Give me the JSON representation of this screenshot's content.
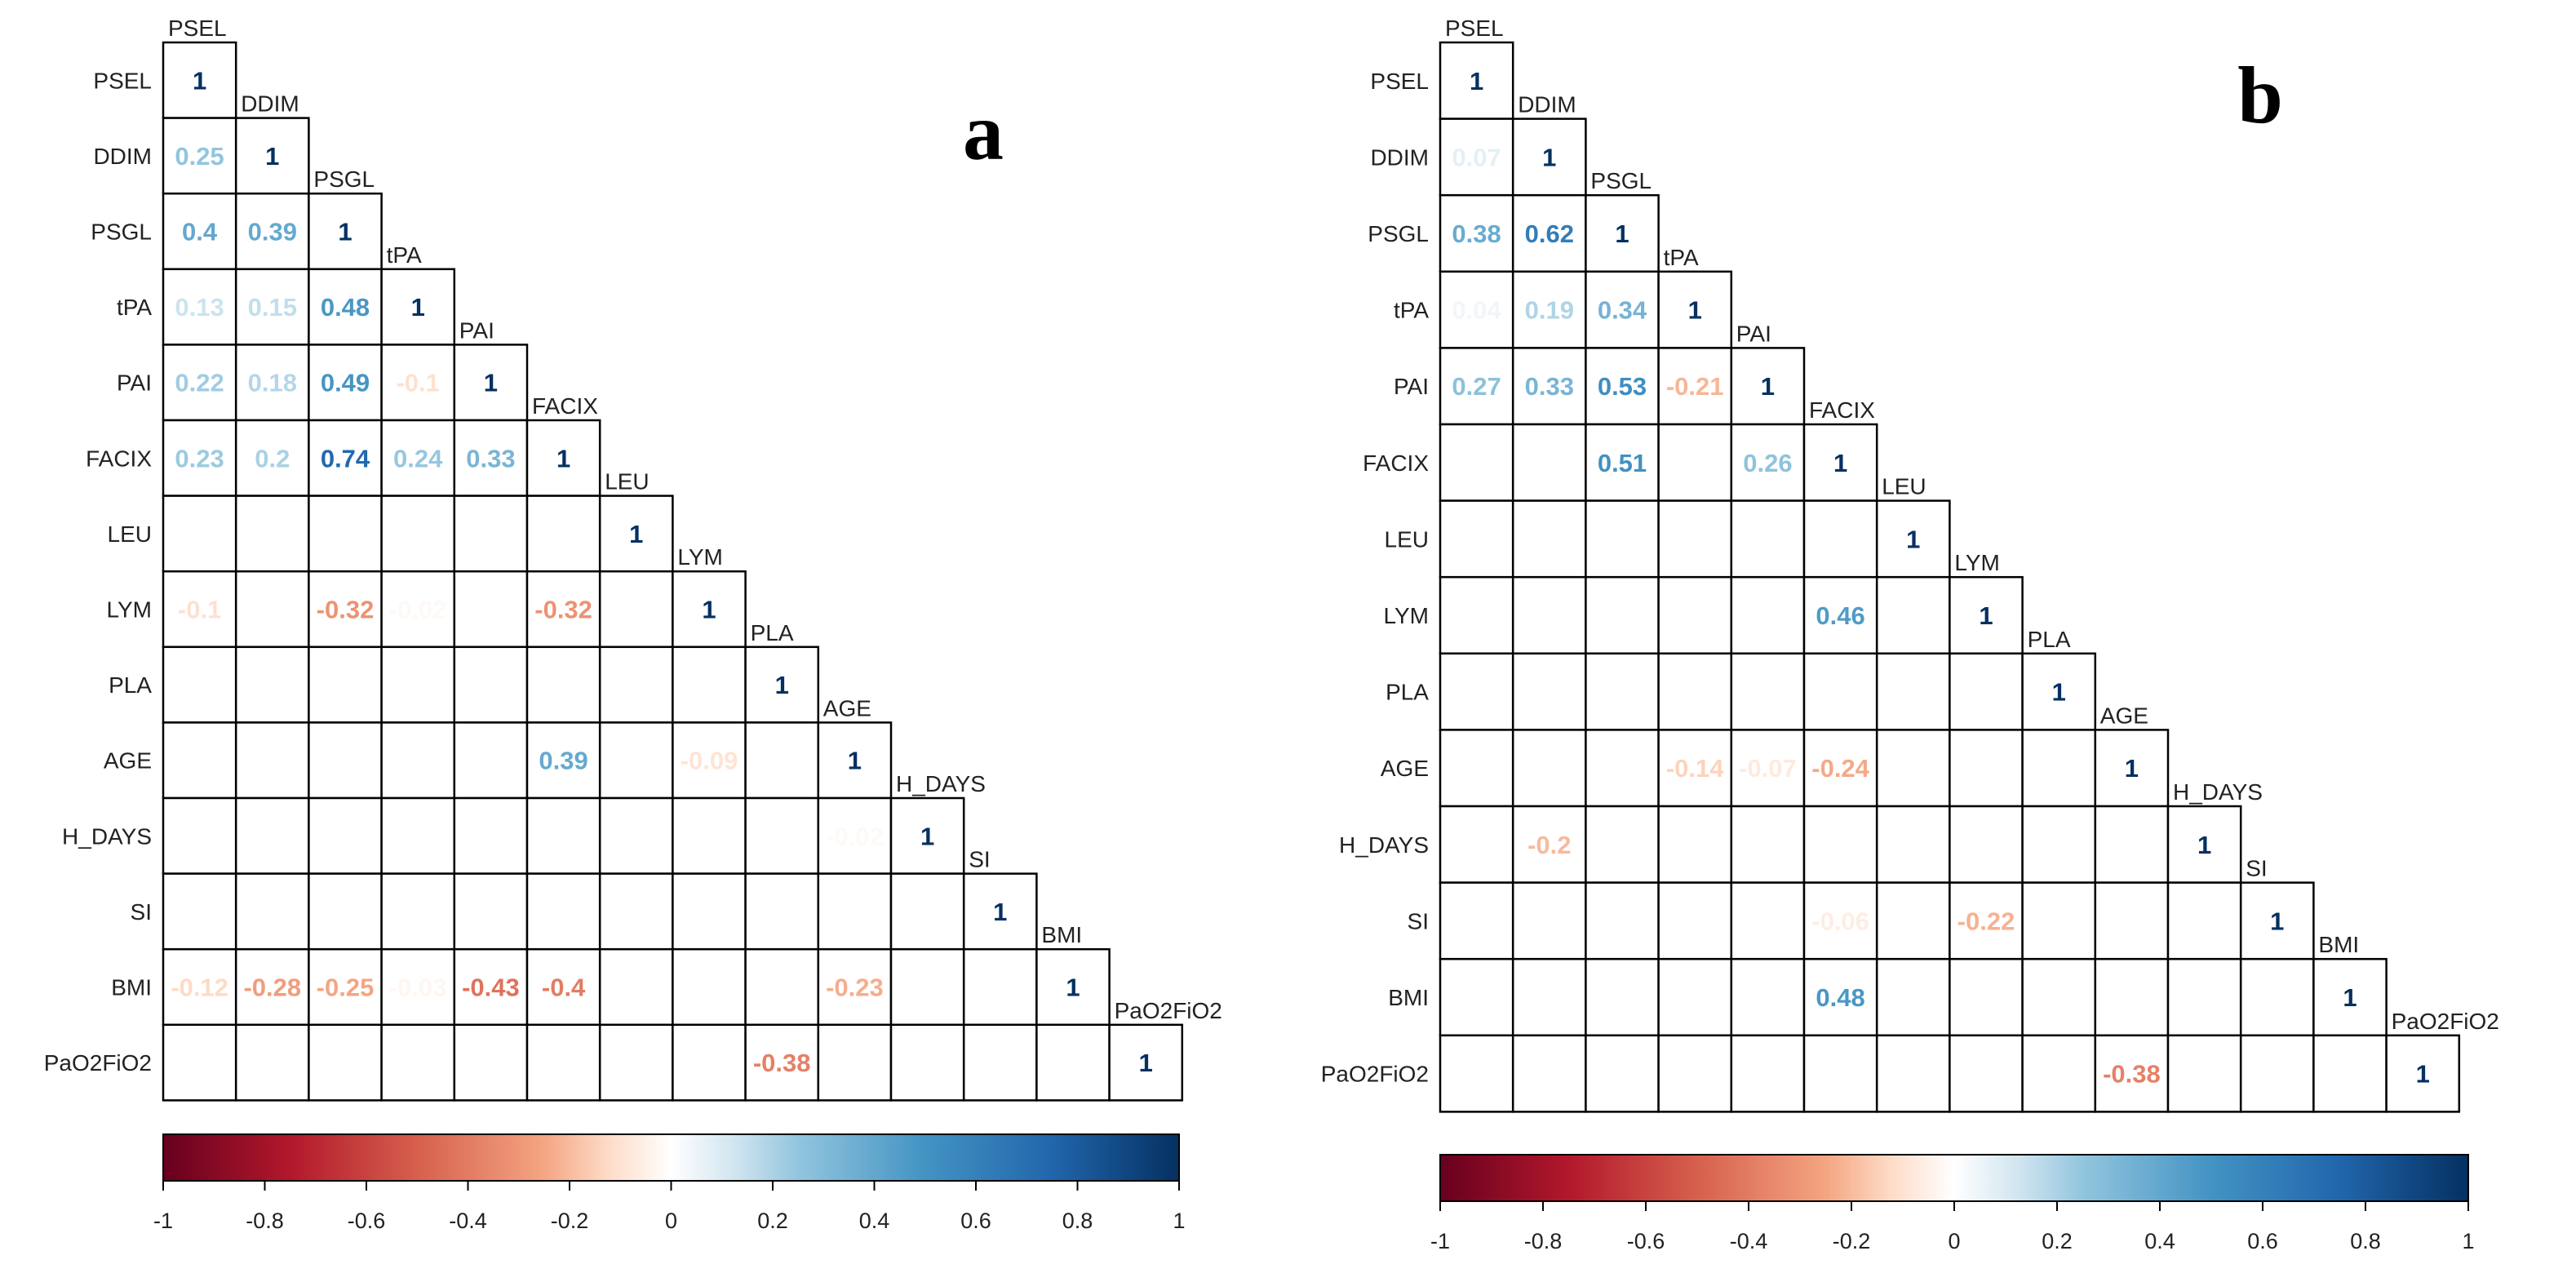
{
  "chart_data": [
    {
      "type": "heatmap",
      "panel_label": "a",
      "variables": [
        "PSEL",
        "DDIM",
        "PSGL",
        "tPA",
        "PAI",
        "FACIX",
        "LEU",
        "LYM",
        "PLA",
        "AGE",
        "H_DAYS",
        "SI",
        "BMI",
        "PaO2FiO2"
      ],
      "cells": [
        {
          "row": "PSEL",
          "col": "PSEL",
          "value": "1"
        },
        {
          "row": "DDIM",
          "col": "PSEL",
          "value": "0.25"
        },
        {
          "row": "DDIM",
          "col": "DDIM",
          "value": "1"
        },
        {
          "row": "PSGL",
          "col": "PSEL",
          "value": "0.4"
        },
        {
          "row": "PSGL",
          "col": "DDIM",
          "value": "0.39"
        },
        {
          "row": "PSGL",
          "col": "PSGL",
          "value": "1"
        },
        {
          "row": "tPA",
          "col": "PSEL",
          "value": "0.13"
        },
        {
          "row": "tPA",
          "col": "DDIM",
          "value": "0.15"
        },
        {
          "row": "tPA",
          "col": "PSGL",
          "value": "0.48"
        },
        {
          "row": "tPA",
          "col": "tPA",
          "value": "1"
        },
        {
          "row": "PAI",
          "col": "PSEL",
          "value": "0.22"
        },
        {
          "row": "PAI",
          "col": "DDIM",
          "value": "0.18"
        },
        {
          "row": "PAI",
          "col": "PSGL",
          "value": "0.49"
        },
        {
          "row": "PAI",
          "col": "tPA",
          "value": "-0.1"
        },
        {
          "row": "PAI",
          "col": "PAI",
          "value": "1"
        },
        {
          "row": "FACIX",
          "col": "PSEL",
          "value": "0.23"
        },
        {
          "row": "FACIX",
          "col": "DDIM",
          "value": "0.2"
        },
        {
          "row": "FACIX",
          "col": "PSGL",
          "value": "0.74"
        },
        {
          "row": "FACIX",
          "col": "tPA",
          "value": "0.24"
        },
        {
          "row": "FACIX",
          "col": "PAI",
          "value": "0.33"
        },
        {
          "row": "FACIX",
          "col": "FACIX",
          "value": "1"
        },
        {
          "row": "LEU",
          "col": "LEU",
          "value": "1"
        },
        {
          "row": "LYM",
          "col": "PSEL",
          "value": "-0.1"
        },
        {
          "row": "LYM",
          "col": "PSGL",
          "value": "-0.32"
        },
        {
          "row": "LYM",
          "col": "tPA",
          "value": "-0.02"
        },
        {
          "row": "LYM",
          "col": "FACIX",
          "value": "-0.32"
        },
        {
          "row": "LYM",
          "col": "LYM",
          "value": "1"
        },
        {
          "row": "PLA",
          "col": "PLA",
          "value": "1"
        },
        {
          "row": "AGE",
          "col": "FACIX",
          "value": "0.39"
        },
        {
          "row": "AGE",
          "col": "LYM",
          "value": "-0.09"
        },
        {
          "row": "AGE",
          "col": "AGE",
          "value": "1"
        },
        {
          "row": "H_DAYS",
          "col": "AGE",
          "value": "-0.02"
        },
        {
          "row": "H_DAYS",
          "col": "H_DAYS",
          "value": "1"
        },
        {
          "row": "SI",
          "col": "SI",
          "value": "1"
        },
        {
          "row": "BMI",
          "col": "PSEL",
          "value": "-0.12"
        },
        {
          "row": "BMI",
          "col": "DDIM",
          "value": "-0.28"
        },
        {
          "row": "BMI",
          "col": "PSGL",
          "value": "-0.25"
        },
        {
          "row": "BMI",
          "col": "tPA",
          "value": "-0.03"
        },
        {
          "row": "BMI",
          "col": "PAI",
          "value": "-0.43"
        },
        {
          "row": "BMI",
          "col": "FACIX",
          "value": "-0.4"
        },
        {
          "row": "BMI",
          "col": "AGE",
          "value": "-0.23"
        },
        {
          "row": "BMI",
          "col": "BMI",
          "value": "1"
        },
        {
          "row": "PaO2FiO2",
          "col": "PLA",
          "value": "-0.38"
        },
        {
          "row": "PaO2FiO2",
          "col": "PaO2FiO2",
          "value": "1"
        }
      ],
      "colorbar": {
        "range": [
          -1,
          1
        ],
        "ticks": [
          "-1",
          "-0.8",
          "-0.6",
          "-0.4",
          "-0.2",
          "0",
          "0.2",
          "0.4",
          "0.6",
          "0.8",
          "1"
        ],
        "colors": {
          "neg_full": "#67001f",
          "neg_mid": "#d6604d",
          "neutral": "#ffffff",
          "pos_mid": "#4393c3",
          "pos_full": "#053061"
        }
      }
    },
    {
      "type": "heatmap",
      "panel_label": "b",
      "variables": [
        "PSEL",
        "DDIM",
        "PSGL",
        "tPA",
        "PAI",
        "FACIX",
        "LEU",
        "LYM",
        "PLA",
        "AGE",
        "H_DAYS",
        "SI",
        "BMI",
        "PaO2FiO2"
      ],
      "cells": [
        {
          "row": "PSEL",
          "col": "PSEL",
          "value": "1"
        },
        {
          "row": "DDIM",
          "col": "PSEL",
          "value": "0.07"
        },
        {
          "row": "DDIM",
          "col": "DDIM",
          "value": "1"
        },
        {
          "row": "PSGL",
          "col": "PSEL",
          "value": "0.38"
        },
        {
          "row": "PSGL",
          "col": "DDIM",
          "value": "0.62"
        },
        {
          "row": "PSGL",
          "col": "PSGL",
          "value": "1"
        },
        {
          "row": "tPA",
          "col": "PSEL",
          "value": "0.04"
        },
        {
          "row": "tPA",
          "col": "DDIM",
          "value": "0.19"
        },
        {
          "row": "tPA",
          "col": "PSGL",
          "value": "0.34"
        },
        {
          "row": "tPA",
          "col": "tPA",
          "value": "1"
        },
        {
          "row": "PAI",
          "col": "PSEL",
          "value": "0.27"
        },
        {
          "row": "PAI",
          "col": "DDIM",
          "value": "0.33"
        },
        {
          "row": "PAI",
          "col": "PSGL",
          "value": "0.53"
        },
        {
          "row": "PAI",
          "col": "tPA",
          "value": "-0.21"
        },
        {
          "row": "PAI",
          "col": "PAI",
          "value": "1"
        },
        {
          "row": "FACIX",
          "col": "PSGL",
          "value": "0.51"
        },
        {
          "row": "FACIX",
          "col": "PAI",
          "value": "0.26"
        },
        {
          "row": "FACIX",
          "col": "FACIX",
          "value": "1"
        },
        {
          "row": "LEU",
          "col": "LEU",
          "value": "1"
        },
        {
          "row": "LYM",
          "col": "FACIX",
          "value": "0.46"
        },
        {
          "row": "LYM",
          "col": "LYM",
          "value": "1"
        },
        {
          "row": "PLA",
          "col": "PLA",
          "value": "1"
        },
        {
          "row": "AGE",
          "col": "tPA",
          "value": "-0.14"
        },
        {
          "row": "AGE",
          "col": "PAI",
          "value": "-0.07"
        },
        {
          "row": "AGE",
          "col": "FACIX",
          "value": "-0.24"
        },
        {
          "row": "AGE",
          "col": "AGE",
          "value": "1"
        },
        {
          "row": "H_DAYS",
          "col": "DDIM",
          "value": "-0.2"
        },
        {
          "row": "H_DAYS",
          "col": "H_DAYS",
          "value": "1"
        },
        {
          "row": "SI",
          "col": "FACIX",
          "value": "-0.06"
        },
        {
          "row": "SI",
          "col": "LYM",
          "value": "-0.22"
        },
        {
          "row": "SI",
          "col": "SI",
          "value": "1"
        },
        {
          "row": "BMI",
          "col": "FACIX",
          "value": "0.48"
        },
        {
          "row": "BMI",
          "col": "BMI",
          "value": "1"
        },
        {
          "row": "PaO2FiO2",
          "col": "AGE",
          "value": "-0.38"
        },
        {
          "row": "PaO2FiO2",
          "col": "PaO2FiO2",
          "value": "1"
        }
      ],
      "colorbar": {
        "range": [
          -1,
          1
        ],
        "ticks": [
          "-1",
          "-0.8",
          "-0.6",
          "-0.4",
          "-0.2",
          "0",
          "0.2",
          "0.4",
          "0.6",
          "0.8",
          "1"
        ],
        "colors": {
          "neg_full": "#67001f",
          "neg_mid": "#d6604d",
          "neutral": "#ffffff",
          "pos_mid": "#4393c3",
          "pos_full": "#053061"
        }
      }
    }
  ]
}
